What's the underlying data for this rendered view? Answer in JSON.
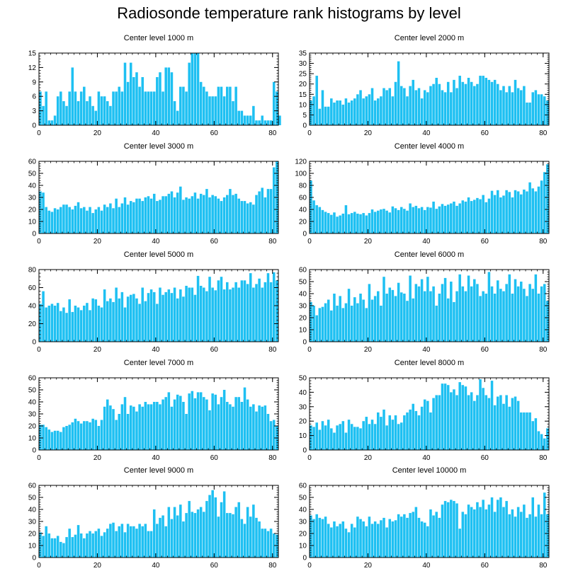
{
  "figure_title": "Radiosonde temperature rank histograms by level",
  "bar_color": "#1ec0f2",
  "chart_data": [
    {
      "type": "bar",
      "title": "Center level 1000 m",
      "xlabel": "",
      "ylabel": "",
      "xlim": [
        0,
        82
      ],
      "ylim": [
        0,
        15
      ],
      "xticks": [
        0,
        20,
        40,
        60,
        80
      ],
      "yticks": [
        0,
        3,
        6,
        9,
        12,
        15
      ],
      "values": [
        7,
        4,
        7,
        1,
        1,
        2,
        6,
        7,
        5,
        4,
        7,
        12,
        7,
        5,
        7,
        8,
        5,
        6,
        4,
        3,
        7,
        6,
        6,
        5,
        4,
        7,
        7,
        8,
        7,
        13,
        9,
        13,
        10,
        11,
        8,
        10,
        7,
        7,
        7,
        7,
        10,
        11,
        7,
        12,
        12,
        11,
        5,
        3,
        8,
        8,
        7,
        13,
        15,
        15,
        15,
        9,
        8,
        7,
        6,
        6,
        6,
        8,
        8,
        6,
        8,
        8,
        5,
        8,
        3,
        3,
        2,
        2,
        2,
        4,
        1,
        1,
        2,
        1,
        1,
        1,
        9,
        7,
        2
      ]
    },
    {
      "type": "bar",
      "title": "Center level 2000 m",
      "xlabel": "",
      "ylabel": "",
      "xlim": [
        0,
        82
      ],
      "ylim": [
        0,
        35
      ],
      "xticks": [
        0,
        20,
        40,
        60,
        80
      ],
      "yticks": [
        0,
        5,
        10,
        15,
        20,
        25,
        30,
        35
      ],
      "values": [
        12,
        14,
        24,
        8,
        17,
        9,
        9,
        13,
        11,
        12,
        12,
        10,
        13,
        11,
        12,
        13,
        15,
        17,
        13,
        14,
        15,
        18,
        12,
        13,
        14,
        18,
        17,
        18,
        14,
        21,
        31,
        19,
        18,
        14,
        19,
        22,
        17,
        18,
        13,
        17,
        16,
        19,
        20,
        23,
        20,
        17,
        16,
        21,
        16,
        22,
        18,
        24,
        21,
        20,
        23,
        21,
        19,
        20,
        24,
        24,
        23,
        22,
        21,
        22,
        20,
        17,
        19,
        16,
        19,
        16,
        22,
        18,
        17,
        19,
        11,
        11,
        16,
        17,
        15,
        15,
        14,
        12
      ]
    },
    {
      "type": "bar",
      "title": "Center level 3000 m",
      "xlabel": "",
      "ylabel": "",
      "xlim": [
        0,
        82
      ],
      "ylim": [
        0,
        60
      ],
      "xticks": [
        0,
        20,
        40,
        60,
        80
      ],
      "yticks": [
        0,
        10,
        20,
        30,
        40,
        50,
        60
      ],
      "values": [
        35,
        34,
        22,
        19,
        18,
        21,
        20,
        22,
        24,
        24,
        22,
        20,
        23,
        26,
        21,
        22,
        19,
        22,
        17,
        20,
        22,
        19,
        24,
        22,
        25,
        21,
        29,
        22,
        25,
        30,
        24,
        27,
        26,
        29,
        29,
        27,
        30,
        31,
        29,
        33,
        27,
        28,
        31,
        31,
        33,
        35,
        30,
        34,
        39,
        28,
        30,
        29,
        31,
        34,
        29,
        33,
        32,
        37,
        30,
        32,
        31,
        29,
        27,
        30,
        32,
        37,
        32,
        33,
        29,
        27,
        27,
        25,
        26,
        24,
        32,
        35,
        38,
        30,
        37,
        37,
        55,
        60
      ]
    },
    {
      "type": "bar",
      "title": "Center level 4000 m",
      "xlabel": "",
      "ylabel": "",
      "xlim": [
        0,
        82
      ],
      "ylim": [
        0,
        120
      ],
      "xticks": [
        0,
        20,
        40,
        60,
        80
      ],
      "yticks": [
        0,
        20,
        40,
        60,
        80,
        100,
        120
      ],
      "values": [
        88,
        55,
        47,
        44,
        39,
        36,
        34,
        31,
        35,
        28,
        30,
        33,
        47,
        32,
        34,
        36,
        33,
        32,
        34,
        30,
        34,
        40,
        36,
        38,
        40,
        41,
        38,
        35,
        45,
        42,
        39,
        44,
        41,
        38,
        50,
        44,
        46,
        42,
        44,
        39,
        44,
        43,
        53,
        41,
        45,
        49,
        46,
        48,
        50,
        53,
        46,
        50,
        55,
        53,
        60,
        54,
        56,
        59,
        57,
        64,
        52,
        58,
        71,
        64,
        72,
        60,
        63,
        72,
        69,
        60,
        72,
        70,
        65,
        73,
        70,
        85,
        75,
        70,
        78,
        88,
        102,
        115
      ]
    },
    {
      "type": "bar",
      "title": "Center level 5000 m",
      "xlabel": "",
      "ylabel": "",
      "xlim": [
        0,
        82
      ],
      "ylim": [
        0,
        80
      ],
      "xticks": [
        0,
        20,
        40,
        60,
        80
      ],
      "yticks": [
        0,
        20,
        40,
        60,
        80
      ],
      "values": [
        42,
        56,
        38,
        40,
        42,
        40,
        43,
        34,
        38,
        32,
        47,
        33,
        40,
        38,
        35,
        40,
        43,
        35,
        48,
        47,
        40,
        38,
        58,
        45,
        48,
        44,
        60,
        48,
        55,
        38,
        50,
        52,
        53,
        48,
        42,
        60,
        45,
        54,
        58,
        55,
        42,
        60,
        52,
        55,
        58,
        54,
        60,
        48,
        58,
        50,
        62,
        60,
        60,
        52,
        73,
        62,
        60,
        56,
        72,
        60,
        57,
        68,
        72,
        58,
        66,
        58,
        60,
        66,
        60,
        68,
        68,
        64,
        76,
        60,
        64,
        70,
        60,
        66,
        76,
        66,
        77,
        68
      ]
    },
    {
      "type": "bar",
      "title": "Center level 6000 m",
      "xlabel": "",
      "ylabel": "",
      "xlim": [
        0,
        82
      ],
      "ylim": [
        0,
        60
      ],
      "xticks": [
        0,
        20,
        40,
        60,
        80
      ],
      "yticks": [
        0,
        10,
        20,
        30,
        40,
        50,
        60
      ],
      "values": [
        33,
        30,
        22,
        28,
        29,
        32,
        35,
        26,
        40,
        30,
        38,
        28,
        32,
        44,
        30,
        37,
        32,
        40,
        35,
        28,
        48,
        35,
        38,
        42,
        30,
        54,
        40,
        45,
        43,
        38,
        49,
        41,
        40,
        34,
        55,
        36,
        48,
        46,
        52,
        42,
        54,
        42,
        46,
        30,
        40,
        48,
        53,
        36,
        50,
        33,
        42,
        56,
        46,
        42,
        55,
        46,
        52,
        48,
        38,
        42,
        40,
        58,
        46,
        40,
        51,
        44,
        42,
        48,
        56,
        40,
        52,
        46,
        50,
        44,
        38,
        48,
        44,
        56,
        40,
        46,
        48,
        34
      ]
    },
    {
      "type": "bar",
      "title": "Center level 7000 m",
      "xlabel": "",
      "ylabel": "",
      "xlim": [
        0,
        82
      ],
      "ylim": [
        0,
        60
      ],
      "xticks": [
        0,
        20,
        40,
        60,
        80
      ],
      "yticks": [
        0,
        10,
        20,
        30,
        40,
        50,
        60
      ],
      "values": [
        21,
        21,
        19,
        17,
        15,
        16,
        16,
        15,
        19,
        20,
        21,
        23,
        26,
        24,
        22,
        24,
        24,
        23,
        26,
        25,
        20,
        25,
        36,
        42,
        37,
        34,
        25,
        30,
        38,
        44,
        30,
        37,
        36,
        32,
        38,
        36,
        40,
        38,
        38,
        40,
        40,
        38,
        42,
        44,
        48,
        36,
        42,
        46,
        45,
        40,
        30,
        47,
        49,
        43,
        48,
        48,
        44,
        42,
        33,
        47,
        46,
        38,
        44,
        50,
        40,
        38,
        36,
        44,
        44,
        40,
        52,
        42,
        36,
        38,
        32,
        37,
        36,
        37,
        30,
        24,
        25,
        20
      ]
    },
    {
      "type": "bar",
      "title": "Center level 8000 m",
      "xlabel": "",
      "ylabel": "",
      "xlim": [
        0,
        82
      ],
      "ylim": [
        0,
        50
      ],
      "xticks": [
        0,
        20,
        40,
        60,
        80
      ],
      "yticks": [
        0,
        10,
        20,
        30,
        40,
        50
      ],
      "values": [
        17,
        16,
        19,
        14,
        20,
        17,
        21,
        15,
        12,
        17,
        18,
        20,
        12,
        21,
        18,
        16,
        16,
        15,
        20,
        23,
        18,
        21,
        18,
        26,
        23,
        28,
        17,
        24,
        21,
        24,
        18,
        19,
        24,
        26,
        28,
        32,
        27,
        24,
        30,
        35,
        34,
        26,
        36,
        38,
        38,
        46,
        46,
        45,
        40,
        42,
        38,
        47,
        45,
        44,
        38,
        40,
        34,
        38,
        49,
        43,
        38,
        36,
        48,
        31,
        37,
        38,
        32,
        38,
        30,
        36,
        37,
        34,
        26,
        26,
        26,
        26,
        20,
        22,
        13,
        11,
        8,
        15
      ]
    },
    {
      "type": "bar",
      "title": "Center level 9000 m",
      "xlabel": "",
      "ylabel": "",
      "xlim": [
        0,
        82
      ],
      "ylim": [
        0,
        60
      ],
      "xticks": [
        0,
        20,
        40,
        60,
        80
      ],
      "yticks": [
        0,
        10,
        20,
        30,
        40,
        50,
        60
      ],
      "values": [
        21,
        18,
        26,
        20,
        16,
        16,
        18,
        13,
        12,
        17,
        24,
        17,
        19,
        27,
        20,
        16,
        20,
        22,
        20,
        22,
        24,
        18,
        21,
        24,
        28,
        29,
        22,
        26,
        28,
        21,
        28,
        26,
        26,
        24,
        28,
        26,
        28,
        22,
        22,
        40,
        28,
        33,
        35,
        26,
        42,
        32,
        42,
        35,
        44,
        30,
        37,
        47,
        38,
        37,
        40,
        42,
        38,
        47,
        52,
        56,
        50,
        34,
        46,
        55,
        37,
        37,
        36,
        42,
        46,
        32,
        28,
        42,
        34,
        44,
        33,
        30,
        24,
        24,
        22,
        24,
        20,
        19
      ]
    },
    {
      "type": "bar",
      "title": "Center level 10000 m",
      "xlabel": "",
      "ylabel": "",
      "xlim": [
        0,
        82
      ],
      "ylim": [
        0,
        60
      ],
      "xticks": [
        0,
        20,
        40,
        60,
        80
      ],
      "yticks": [
        0,
        10,
        20,
        30,
        40,
        50,
        60
      ],
      "values": [
        35,
        32,
        36,
        33,
        32,
        34,
        28,
        25,
        30,
        26,
        28,
        30,
        24,
        21,
        28,
        25,
        34,
        32,
        30,
        26,
        34,
        28,
        30,
        28,
        31,
        33,
        25,
        32,
        30,
        31,
        36,
        34,
        36,
        33,
        37,
        38,
        42,
        33,
        30,
        29,
        26,
        40,
        35,
        38,
        33,
        44,
        47,
        46,
        48,
        47,
        45,
        24,
        38,
        36,
        44,
        42,
        40,
        46,
        42,
        48,
        40,
        44,
        50,
        38,
        48,
        50,
        42,
        47,
        36,
        40,
        34,
        42,
        38,
        44,
        33,
        36,
        50,
        34,
        44,
        36,
        54,
        36
      ]
    }
  ]
}
